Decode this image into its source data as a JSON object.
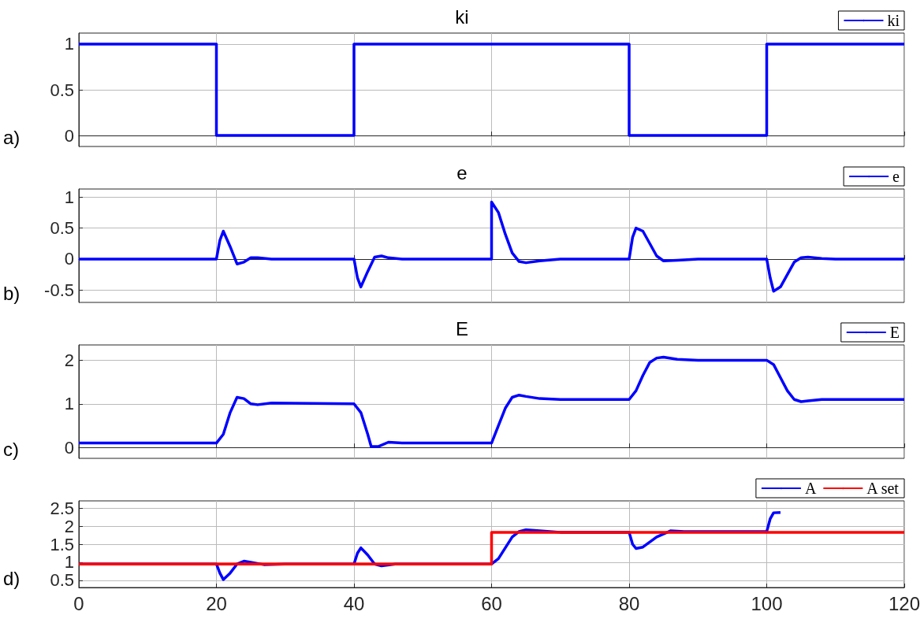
{
  "chart_data": [
    {
      "type": "line",
      "title": "ki",
      "annotations": [
        "a)"
      ],
      "xlim": [
        0,
        120
      ],
      "xticks": [
        0,
        20,
        40,
        60,
        80,
        100,
        120
      ],
      "ylim": [
        -0.12,
        1.12
      ],
      "yticks": [
        0,
        0.5,
        1
      ],
      "grid": true,
      "legend": "top right",
      "marker": "none",
      "tick_labels": "y",
      "series": [
        {
          "name": "ki",
          "color": "#0000ff",
          "x": [
            0,
            20,
            20,
            40,
            40,
            80,
            80,
            100,
            100,
            120
          ],
          "values": [
            1,
            1,
            0,
            0,
            1,
            1,
            0,
            0,
            1,
            1
          ]
        }
      ]
    },
    {
      "type": "line",
      "title": "e",
      "annotations": [
        "b)"
      ],
      "xlim": [
        0,
        120
      ],
      "xticks": [
        0,
        20,
        40,
        60,
        80,
        100,
        120
      ],
      "ylim": [
        -0.7,
        1.13
      ],
      "yticks": [
        -0.5,
        0,
        0.5,
        1
      ],
      "grid": true,
      "legend": "top right",
      "marker": "none",
      "tick_labels": "y",
      "series": [
        {
          "name": "e",
          "color": "#0000ff",
          "x": [
            0,
            20,
            20.5,
            21,
            22,
            23,
            24,
            25,
            26,
            28,
            40,
            40.5,
            41,
            42,
            43,
            44,
            45,
            47,
            60,
            60,
            61,
            62,
            63,
            64,
            65,
            67,
            70,
            80,
            80.5,
            81,
            82,
            83,
            84,
            85,
            87,
            90,
            100,
            100.5,
            101,
            102,
            103,
            104,
            105,
            106,
            108,
            110,
            120
          ],
          "values": [
            0,
            0,
            0.3,
            0.45,
            0.2,
            -0.08,
            -0.05,
            0.02,
            0.02,
            0,
            0,
            -0.3,
            -0.45,
            -0.2,
            0.03,
            0.05,
            0.02,
            0,
            0,
            0.92,
            0.75,
            0.4,
            0.1,
            -0.04,
            -0.06,
            -0.03,
            0,
            0,
            0.35,
            0.5,
            0.45,
            0.25,
            0.05,
            -0.03,
            -0.02,
            0,
            0,
            -0.3,
            -0.52,
            -0.45,
            -0.25,
            -0.05,
            0.02,
            0.03,
            0.01,
            0,
            0
          ]
        }
      ]
    },
    {
      "type": "line",
      "title": "E",
      "annotations": [
        "c)"
      ],
      "xlim": [
        0,
        120
      ],
      "xticks": [
        0,
        20,
        40,
        60,
        80,
        100,
        120
      ],
      "ylim": [
        -0.25,
        2.35
      ],
      "yticks": [
        0,
        1,
        2
      ],
      "grid": true,
      "legend": "top right",
      "marker": "none",
      "tick_labels": "y",
      "series": [
        {
          "name": "E",
          "color": "#0000ff",
          "x": [
            0,
            20,
            21,
            22,
            23,
            24,
            25,
            26,
            28,
            40,
            41,
            42,
            42.5,
            43.5,
            45,
            47,
            60,
            61,
            62,
            63,
            64,
            65,
            67,
            70,
            80,
            81,
            82,
            83,
            84,
            85,
            87,
            90,
            100,
            101,
            102,
            103,
            104,
            105,
            106,
            108,
            120
          ],
          "values": [
            0.1,
            0.1,
            0.3,
            0.8,
            1.15,
            1.12,
            1.0,
            0.98,
            1.02,
            1.0,
            0.8,
            0.3,
            0.02,
            0.02,
            0.12,
            0.1,
            0.1,
            0.5,
            0.9,
            1.15,
            1.2,
            1.17,
            1.12,
            1.1,
            1.1,
            1.3,
            1.65,
            1.95,
            2.05,
            2.07,
            2.02,
            2.0,
            2.0,
            1.9,
            1.6,
            1.3,
            1.1,
            1.05,
            1.07,
            1.1,
            1.1
          ]
        }
      ]
    },
    {
      "type": "line",
      "annotations": [
        "d)"
      ],
      "xlim": [
        0,
        120
      ],
      "xticks": [
        0,
        20,
        40,
        60,
        80,
        100,
        120
      ],
      "ylim": [
        0.3,
        2.7
      ],
      "yticks": [
        0.5,
        1,
        1.5,
        2,
        2.5
      ],
      "grid": true,
      "legend": "top right",
      "marker": "none",
      "series": [
        {
          "name": "A",
          "color": "#0000ff",
          "x": [
            0,
            20,
            20.5,
            21,
            22,
            23,
            24,
            25,
            27,
            30,
            40,
            40.5,
            41,
            42,
            43,
            44,
            46,
            60,
            61,
            62,
            63,
            64,
            65,
            67,
            70,
            80,
            80.5,
            81,
            82,
            84,
            86,
            88,
            100,
            100.5,
            101,
            102
          ],
          "values": [
            0.95,
            0.95,
            0.7,
            0.52,
            0.7,
            0.95,
            1.03,
            1.0,
            0.93,
            0.95,
            0.95,
            1.25,
            1.4,
            1.2,
            0.95,
            0.9,
            0.95,
            0.95,
            1.1,
            1.4,
            1.7,
            1.85,
            1.9,
            1.87,
            1.83,
            1.83,
            1.5,
            1.38,
            1.42,
            1.7,
            1.87,
            1.85,
            1.85,
            2.2,
            2.37,
            2.38
          ]
        },
        {
          "name": "A set",
          "color": "#ff0000",
          "x": [
            0,
            60,
            60,
            120
          ],
          "values": [
            0.95,
            0.95,
            1.83,
            1.83
          ]
        }
      ]
    }
  ]
}
